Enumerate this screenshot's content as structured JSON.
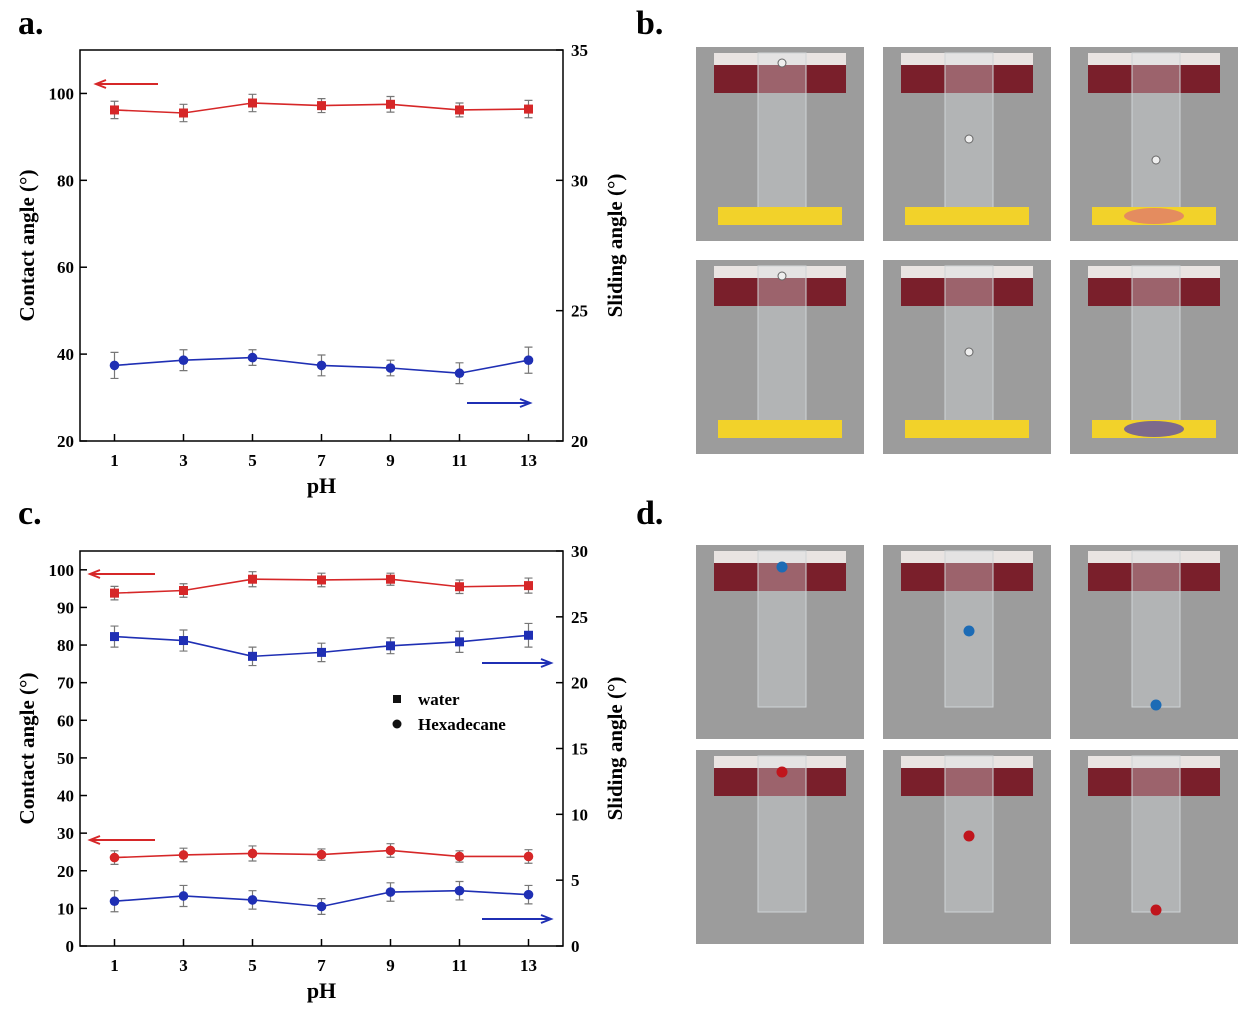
{
  "chart_data": [
    {
      "type": "line",
      "panel_label": "a.",
      "xlabel": "pH",
      "ylabel": "Contact angle (°)",
      "y2label": "Sliding angle (°)",
      "x": [
        1,
        3,
        5,
        7,
        9,
        11,
        13
      ],
      "xlim": [
        0,
        14
      ],
      "xticks": [
        1,
        3,
        5,
        7,
        9,
        11,
        13
      ],
      "ylim": [
        20,
        110
      ],
      "yticks": [
        20,
        40,
        60,
        80,
        100
      ],
      "y2lim": [
        20,
        35
      ],
      "y2ticks": [
        20,
        25,
        30,
        35
      ],
      "series": [
        {
          "color": "#d62728",
          "marker": "square",
          "values": [
            96.2,
            95.5,
            97.8,
            97.2,
            97.5,
            96.2,
            96.4
          ],
          "errors": [
            2,
            2,
            2,
            1.6,
            1.8,
            1.6,
            2
          ]
        },
        {
          "color": "#1f2fb4",
          "marker": "circle",
          "axis": "y2",
          "values": [
            22.9,
            23.1,
            23.2,
            22.9,
            22.8,
            22.6,
            23.1
          ],
          "errors": [
            0.5,
            0.4,
            0.3,
            0.4,
            0.3,
            0.4,
            0.5
          ]
        }
      ]
    },
    {
      "type": "line",
      "panel_label": "c.",
      "xlabel": "pH",
      "ylabel": "Contact angle (°)",
      "y2label": "Sliding angle (°)",
      "x": [
        1,
        3,
        5,
        7,
        9,
        11,
        13
      ],
      "xlim": [
        0,
        14
      ],
      "xticks": [
        1,
        3,
        5,
        7,
        9,
        11,
        13
      ],
      "ylim": [
        0,
        105
      ],
      "yticks": [
        0,
        10,
        20,
        30,
        40,
        50,
        60,
        70,
        80,
        90,
        100
      ],
      "y2lim": [
        0,
        30
      ],
      "y2ticks": [
        0,
        5,
        10,
        15,
        20,
        25,
        30
      ],
      "legend": [
        {
          "label": "water",
          "marker": "square"
        },
        {
          "label": "Hexadecane",
          "marker": "circle"
        }
      ],
      "series": [
        {
          "color": "#d62728",
          "marker": "square",
          "values": [
            93.8,
            94.5,
            97.5,
            97.3,
            97.5,
            95.5,
            95.8
          ],
          "errors": [
            1.8,
            1.8,
            2,
            1.8,
            1.6,
            1.8,
            2
          ]
        },
        {
          "color": "#d62728",
          "marker": "circle",
          "values": [
            23.5,
            24.2,
            24.6,
            24.3,
            25.4,
            23.8,
            23.8
          ],
          "errors": [
            1.8,
            1.8,
            2,
            1.5,
            1.8,
            1.5,
            1.8
          ]
        },
        {
          "color": "#1f2fb4",
          "marker": "square",
          "axis": "y2",
          "values": [
            23.5,
            23.2,
            22.0,
            22.3,
            22.8,
            23.1,
            23.6
          ],
          "errors": [
            0.8,
            0.8,
            0.7,
            0.7,
            0.6,
            0.8,
            0.9
          ]
        },
        {
          "color": "#1f2fb4",
          "marker": "circle",
          "axis": "y2",
          "values": [
            3.4,
            3.8,
            3.5,
            3.0,
            4.1,
            4.2,
            3.9
          ],
          "errors": [
            0.8,
            0.8,
            0.7,
            0.6,
            0.7,
            0.7,
            0.7
          ]
        }
      ]
    }
  ],
  "photo_panels": [
    {
      "label": "b.",
      "liquid": "yellow"
    },
    {
      "label": "d.",
      "liquid": "drops"
    }
  ]
}
